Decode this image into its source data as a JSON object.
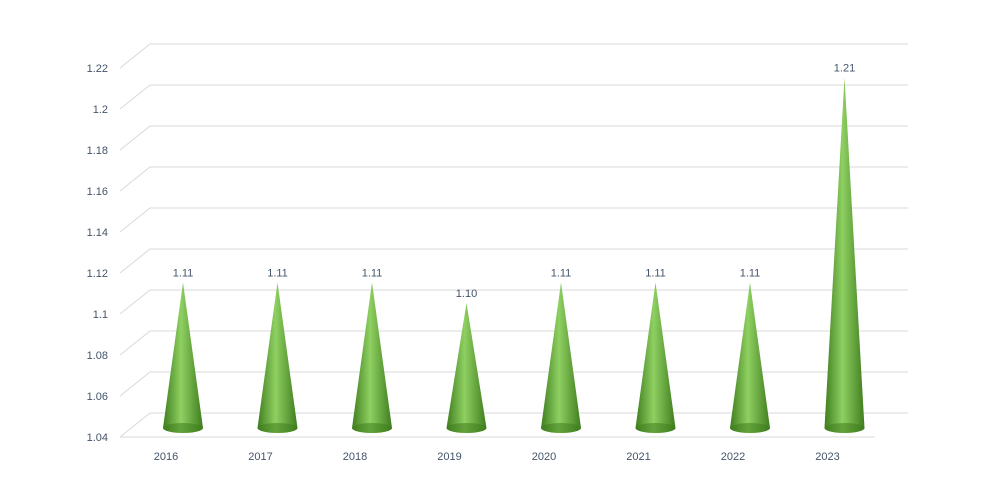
{
  "chart_data": {
    "type": "bar",
    "style": "3d-cone",
    "title": "",
    "xlabel": "",
    "ylabel": "",
    "categories": [
      "2016",
      "2017",
      "2018",
      "2019",
      "2020",
      "2021",
      "2022",
      "2023"
    ],
    "series": [
      {
        "values": [
          1.11,
          1.11,
          1.11,
          1.1,
          1.11,
          1.11,
          1.11,
          1.21
        ]
      }
    ],
    "data_labels": [
      "1.11",
      "1.11",
      "1.11",
      "1.10",
      "1.11",
      "1.11",
      "1.11",
      "1.21"
    ],
    "ylim": [
      1.04,
      1.22
    ],
    "yticks": [
      "1.04",
      "1.06",
      "1.08",
      "1.1",
      "1.12",
      "1.14",
      "1.16",
      "1.18",
      "1.2",
      "1.22"
    ],
    "grid": true,
    "legend": "none"
  },
  "colors": {
    "cone_dark": "#3f7d1e",
    "cone_light": "#8fd062",
    "grid": "#d9d9d9",
    "text": "#44546a"
  }
}
